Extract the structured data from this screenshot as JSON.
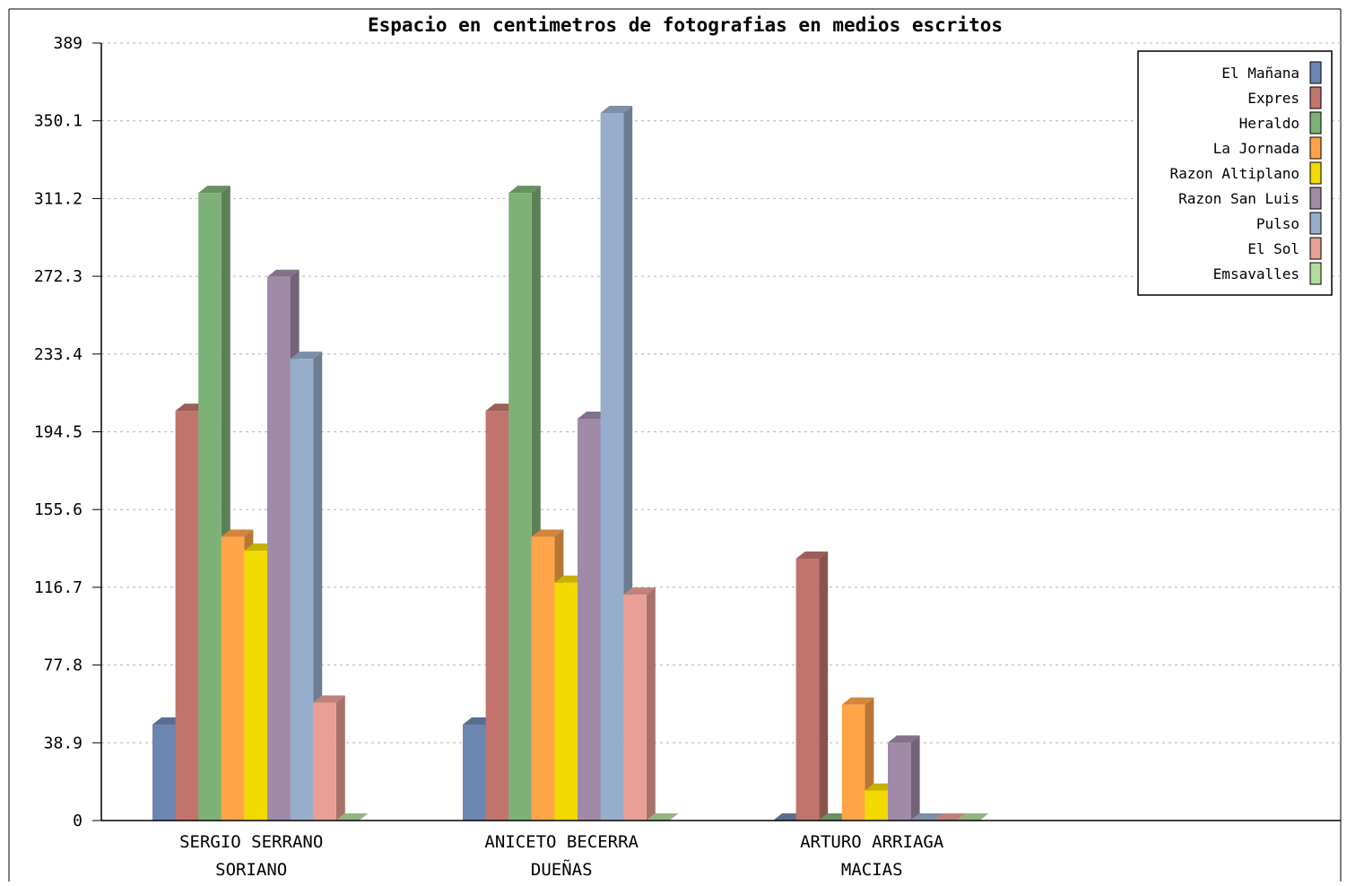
{
  "chart_data": {
    "type": "bar",
    "title": "Espacio en centimetros de fotografias en medios escritos",
    "xlabel": "",
    "ylabel": "",
    "ylim": [
      0,
      389
    ],
    "yticks": [
      "0",
      "38.9",
      "77.8",
      "116.7",
      "155.6",
      "194.5",
      "233.4",
      "272.3",
      "311.2",
      "350.1",
      "389"
    ],
    "grid": true,
    "legend_position": "top-right",
    "categories": [
      [
        "SERGIO SERRANO",
        "SORIANO"
      ],
      [
        "ANICETO BECERRA",
        "DUEÑAS"
      ],
      [
        "ARTURO ARRIAGA",
        "MACIAS"
      ]
    ],
    "series": [
      {
        "name": "El Mañana",
        "color": "#6b86b0",
        "values": [
          48,
          48,
          0
        ]
      },
      {
        "name": "Expres",
        "color": "#c0746d",
        "values": [
          205,
          205,
          131
        ]
      },
      {
        "name": "Heraldo",
        "color": "#7eb177",
        "values": [
          314,
          314,
          0
        ]
      },
      {
        "name": "La Jornada",
        "color": "#ffa449",
        "values": [
          142,
          142,
          58
        ]
      },
      {
        "name": "Razon Altiplano",
        "color": "#f2d900",
        "values": [
          135,
          119,
          15
        ]
      },
      {
        "name": "Razon San Luis",
        "color": "#a08aa8",
        "values": [
          272,
          201,
          39
        ]
      },
      {
        "name": "Pulso",
        "color": "#96aecb",
        "values": [
          231,
          354,
          0
        ]
      },
      {
        "name": "El Sol",
        "color": "#e89f95",
        "values": [
          59,
          113,
          0
        ]
      },
      {
        "name": "Emsavalles",
        "color": "#b2dd9e",
        "values": [
          0,
          0,
          0
        ]
      }
    ]
  }
}
